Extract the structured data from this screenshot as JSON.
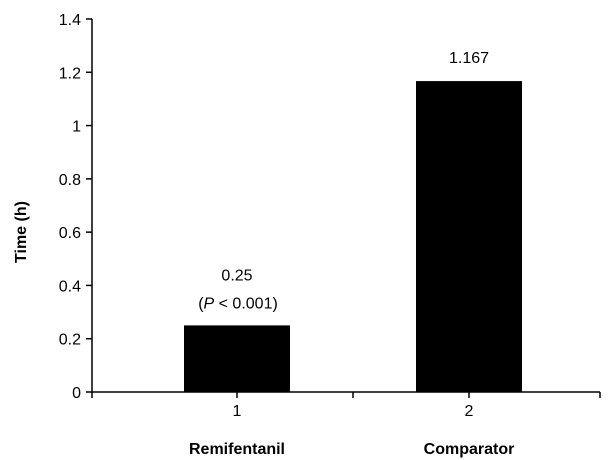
{
  "chart_data": {
    "type": "bar",
    "categories": [
      "1",
      "2"
    ],
    "category_names": [
      "Remifentanil",
      "Comparator"
    ],
    "values": [
      0.25,
      1.167
    ],
    "data_labels": [
      "0.25",
      "1.167"
    ],
    "annotations": [
      {
        "category": "1",
        "parts": [
          "(",
          "P",
          " < 0.001)"
        ]
      }
    ],
    "title": "",
    "xlabel": "",
    "ylabel": "Time (h)",
    "ylim": [
      0,
      1.4
    ],
    "yticks": [
      0,
      0.2,
      0.4,
      0.6,
      0.8,
      1,
      1.2,
      1.4
    ],
    "ytick_labels": [
      "0",
      "0.2",
      "0.4",
      "0.6",
      "0.8",
      "1",
      "1.2",
      "1.4"
    ],
    "grid": false,
    "legend": "none",
    "bar_color": "#000000",
    "axis_color": "#000000"
  }
}
